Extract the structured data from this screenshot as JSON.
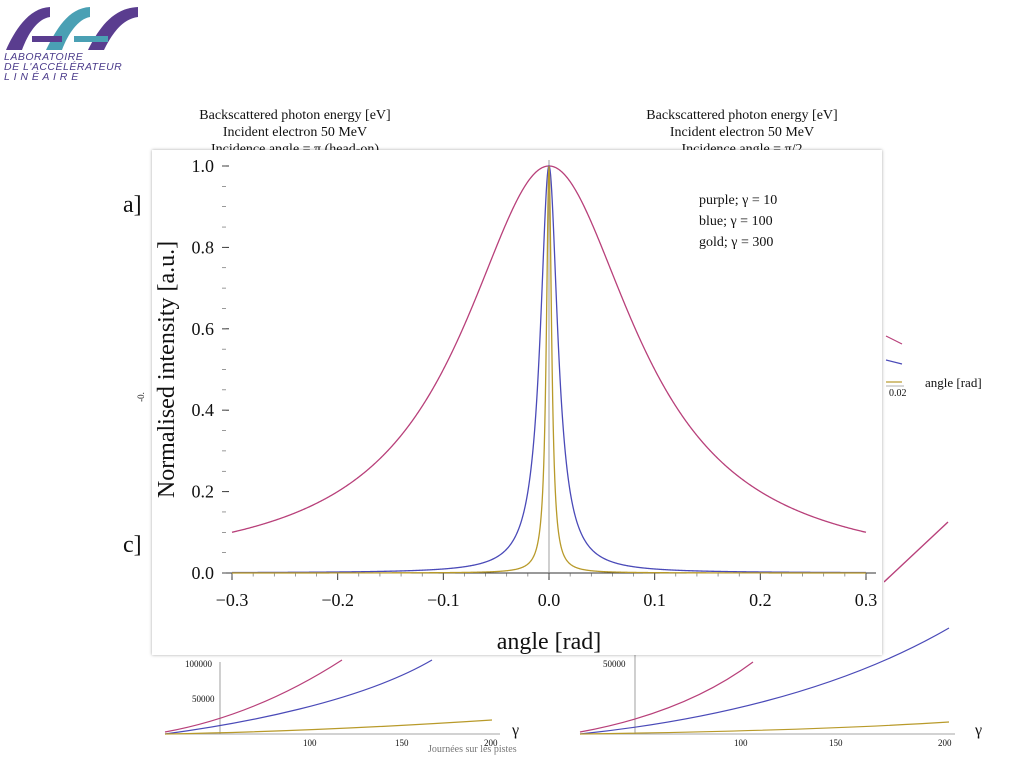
{
  "logo": {
    "lines": [
      "LABORATOIRE",
      "DE L'ACCÉLÉRATEUR",
      "L I N É A I R E"
    ],
    "colors": {
      "purple": "#5a3d8f",
      "teal": "#4aa0b4",
      "text": "#4a3a8a"
    }
  },
  "background_panels": {
    "left_title": [
      "Backscattered photon energy [eV]",
      "Incident electron 50 MeV",
      "Incidence angle = π (head-on)"
    ],
    "right_title": [
      "Backscattered photon energy [eV]",
      "Incident electron 50 MeV",
      "Incidence angle = π/2"
    ],
    "label_a": "a]",
    "label_c": "c]",
    "right_axis_label": "angle [rad]",
    "right_tick_label": "0.02",
    "left_tick_fragment": "-0.",
    "bottom_left_yticks": [
      "100000",
      "50000"
    ],
    "bottom_left_xticks": [
      "100",
      "150",
      "200"
    ],
    "bottom_right_yticks": [
      "50000"
    ],
    "bottom_right_xticks": [
      "100",
      "150",
      "200"
    ],
    "gamma_symbol": "γ",
    "footer_fragment": "Journées sur les pistes"
  },
  "chart_data": {
    "type": "line",
    "title": "",
    "xlabel": "angle [rad]",
    "ylabel": "Normalised intensity [a.u.]",
    "xlim": [
      -0.3,
      0.3
    ],
    "ylim": [
      0.0,
      1.0
    ],
    "xticks": [
      -0.3,
      -0.2,
      -0.1,
      0.0,
      0.1,
      0.2,
      0.3
    ],
    "xtick_labels": [
      "−0.3",
      "−0.2",
      "−0.1",
      "0.0",
      "0.1",
      "0.2",
      "0.3"
    ],
    "yticks": [
      0.0,
      0.2,
      0.4,
      0.6,
      0.8,
      1.0
    ],
    "ytick_labels": [
      "0.0",
      "0.2",
      "0.4",
      "0.6",
      "0.8",
      "1.0"
    ],
    "grid": false,
    "legend_position": "top-right",
    "legend": [
      "purple; γ = 10",
      "blue;  γ = 100",
      "gold; γ = 300"
    ],
    "series": [
      {
        "color": "#b8407a",
        "gamma": 10,
        "x": [
          -0.3,
          -0.25,
          -0.2,
          -0.15,
          -0.1,
          -0.05,
          0.0,
          0.05,
          0.1,
          0.15,
          0.2,
          0.25,
          0.3
        ],
        "y": [
          0.1,
          0.14,
          0.2,
          0.31,
          0.5,
          0.8,
          1.0,
          0.8,
          0.5,
          0.31,
          0.2,
          0.14,
          0.1
        ]
      },
      {
        "color": "#4a4ab8",
        "gamma": 100,
        "x": [
          -0.3,
          -0.1,
          -0.05,
          -0.03,
          -0.02,
          -0.01,
          -0.005,
          0.0,
          0.005,
          0.01,
          0.02,
          0.03,
          0.05,
          0.1,
          0.3
        ],
        "y": [
          0.001,
          0.01,
          0.038,
          0.1,
          0.2,
          0.5,
          0.8,
          1.0,
          0.8,
          0.5,
          0.2,
          0.1,
          0.038,
          0.01,
          0.001
        ]
      },
      {
        "color": "#b89a2a",
        "gamma": 300,
        "x": [
          -0.3,
          -0.05,
          -0.02,
          -0.01,
          -0.005,
          -0.003,
          0.0,
          0.003,
          0.005,
          0.01,
          0.02,
          0.05,
          0.3
        ],
        "y": [
          0.0,
          0.004,
          0.027,
          0.1,
          0.31,
          0.55,
          1.0,
          0.55,
          0.31,
          0.1,
          0.027,
          0.004,
          0.0
        ]
      }
    ]
  }
}
